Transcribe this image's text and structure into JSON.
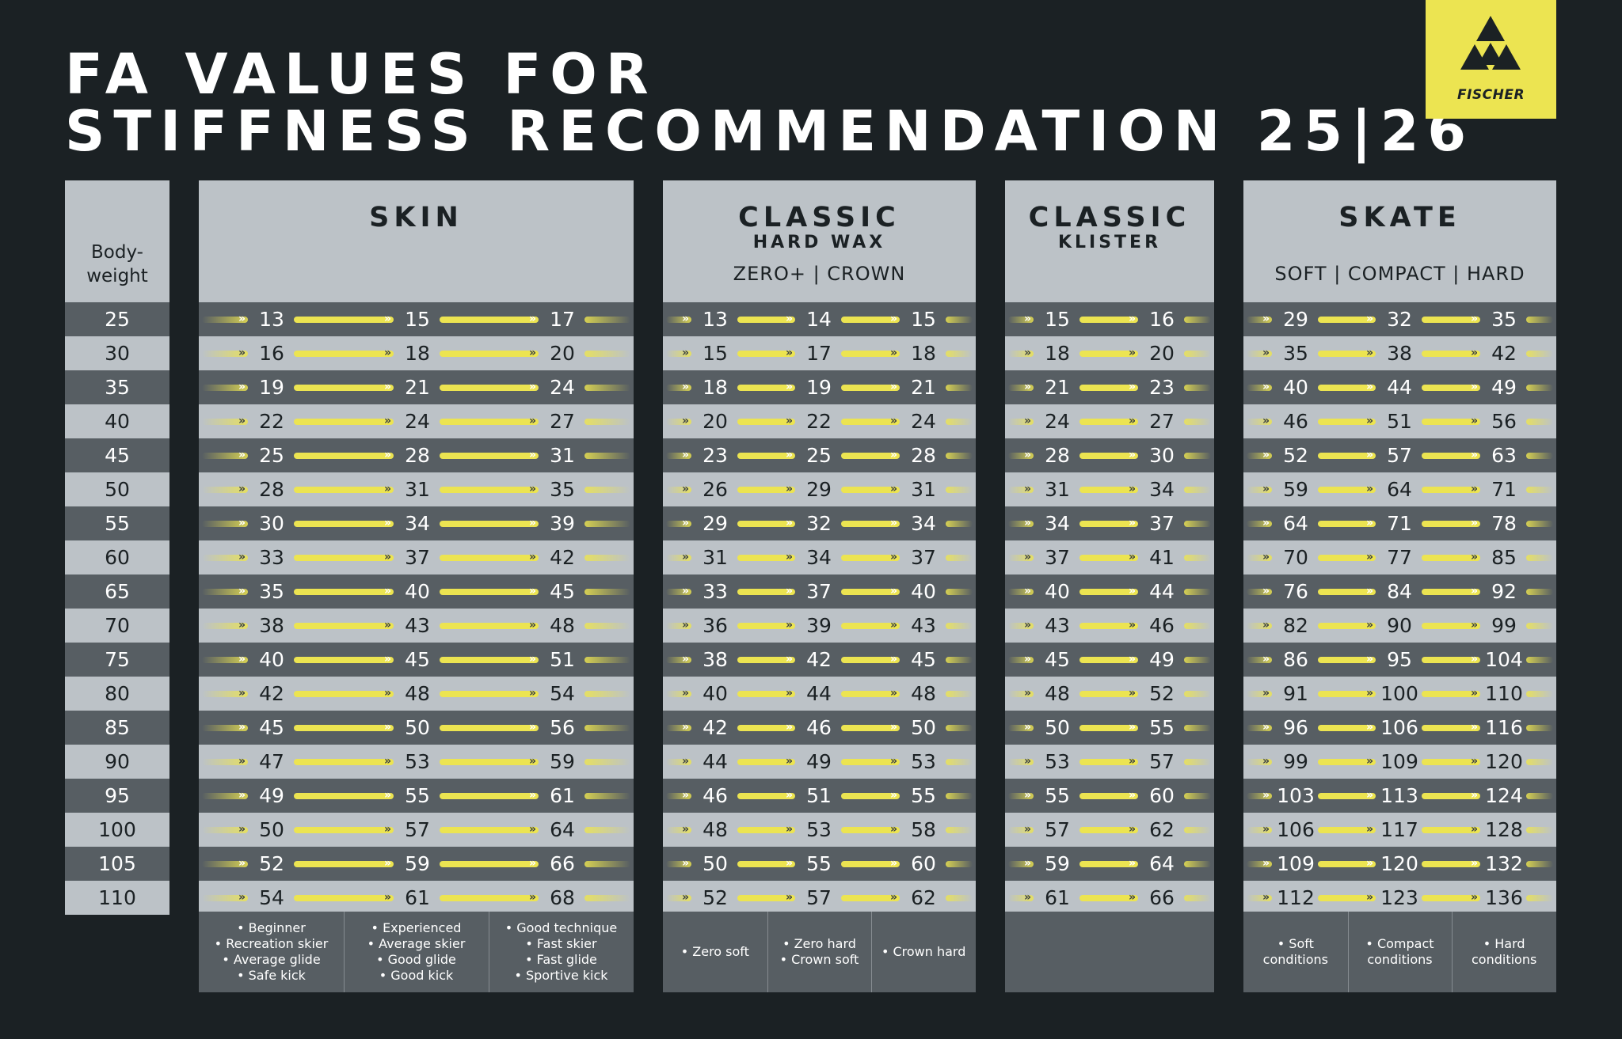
{
  "title_line1": "FA VALUES FOR",
  "title_line2": "STIFFNESS RECOMMENDATION 25|26",
  "logo": {
    "brand": "FISCHER",
    "icon": "triangle-trio-logo",
    "color": "#ece451"
  },
  "colors": {
    "background": "#1b2124",
    "row_dark": "#575e63",
    "row_light": "#bcc2c7",
    "accent": "#ece451"
  },
  "bodyweight": {
    "label_line1": "Body-",
    "label_line2": "weight",
    "values": [
      "25",
      "30",
      "35",
      "40",
      "45",
      "50",
      "55",
      "60",
      "65",
      "70",
      "75",
      "80",
      "85",
      "90",
      "95",
      "100",
      "105",
      "110"
    ]
  },
  "skin": {
    "title": "SKIN",
    "rows": [
      [
        "13",
        "15",
        "17"
      ],
      [
        "16",
        "18",
        "20"
      ],
      [
        "19",
        "21",
        "24"
      ],
      [
        "22",
        "24",
        "27"
      ],
      [
        "25",
        "28",
        "31"
      ],
      [
        "28",
        "31",
        "35"
      ],
      [
        "30",
        "34",
        "39"
      ],
      [
        "33",
        "37",
        "42"
      ],
      [
        "35",
        "40",
        "45"
      ],
      [
        "38",
        "43",
        "48"
      ],
      [
        "40",
        "45",
        "51"
      ],
      [
        "42",
        "48",
        "54"
      ],
      [
        "45",
        "50",
        "56"
      ],
      [
        "47",
        "53",
        "59"
      ],
      [
        "49",
        "55",
        "61"
      ],
      [
        "50",
        "57",
        "64"
      ],
      [
        "52",
        "59",
        "66"
      ],
      [
        "54",
        "61",
        "68"
      ]
    ],
    "footer": [
      "• Beginner\n• Recreation skier\n• Average glide\n• Safe kick",
      "• Experienced\n• Average skier\n• Good glide\n• Good kick",
      "• Good technique\n• Fast skier\n• Fast glide\n• Sportive kick"
    ]
  },
  "classic_hardwax": {
    "title": "CLASSIC",
    "subtitle": "HARD WAX",
    "options": "ZERO+  |  CROWN",
    "rows": [
      [
        "13",
        "14",
        "15"
      ],
      [
        "15",
        "17",
        "18"
      ],
      [
        "18",
        "19",
        "21"
      ],
      [
        "20",
        "22",
        "24"
      ],
      [
        "23",
        "25",
        "28"
      ],
      [
        "26",
        "29",
        "31"
      ],
      [
        "29",
        "32",
        "34"
      ],
      [
        "31",
        "34",
        "37"
      ],
      [
        "33",
        "37",
        "40"
      ],
      [
        "36",
        "39",
        "43"
      ],
      [
        "38",
        "42",
        "45"
      ],
      [
        "40",
        "44",
        "48"
      ],
      [
        "42",
        "46",
        "50"
      ],
      [
        "44",
        "49",
        "53"
      ],
      [
        "46",
        "51",
        "55"
      ],
      [
        "48",
        "53",
        "58"
      ],
      [
        "50",
        "55",
        "60"
      ],
      [
        "52",
        "57",
        "62"
      ]
    ],
    "footer": [
      "• Zero soft",
      "• Zero hard\n• Crown soft",
      "• Crown hard"
    ]
  },
  "classic_klister": {
    "title": "CLASSIC",
    "subtitle": "KLISTER",
    "rows": [
      [
        "15",
        "16"
      ],
      [
        "18",
        "20"
      ],
      [
        "21",
        "23"
      ],
      [
        "24",
        "27"
      ],
      [
        "28",
        "30"
      ],
      [
        "31",
        "34"
      ],
      [
        "34",
        "37"
      ],
      [
        "37",
        "41"
      ],
      [
        "40",
        "44"
      ],
      [
        "43",
        "46"
      ],
      [
        "45",
        "49"
      ],
      [
        "48",
        "52"
      ],
      [
        "50",
        "55"
      ],
      [
        "53",
        "57"
      ],
      [
        "55",
        "60"
      ],
      [
        "57",
        "62"
      ],
      [
        "59",
        "64"
      ],
      [
        "61",
        "66"
      ]
    ]
  },
  "skate": {
    "title": "SKATE",
    "options": "SOFT  |  COMPACT  |  HARD",
    "rows": [
      [
        "29",
        "32",
        "35"
      ],
      [
        "35",
        "38",
        "42"
      ],
      [
        "40",
        "44",
        "49"
      ],
      [
        "46",
        "51",
        "56"
      ],
      [
        "52",
        "57",
        "63"
      ],
      [
        "59",
        "64",
        "71"
      ],
      [
        "64",
        "71",
        "78"
      ],
      [
        "70",
        "77",
        "85"
      ],
      [
        "76",
        "84",
        "92"
      ],
      [
        "82",
        "90",
        "99"
      ],
      [
        "86",
        "95",
        "104"
      ],
      [
        "91",
        "100",
        "110"
      ],
      [
        "96",
        "106",
        "116"
      ],
      [
        "99",
        "109",
        "120"
      ],
      [
        "103",
        "113",
        "124"
      ],
      [
        "106",
        "117",
        "128"
      ],
      [
        "109",
        "120",
        "132"
      ],
      [
        "112",
        "123",
        "136"
      ]
    ],
    "footer": [
      "• Soft\nconditions",
      "• Compact\nconditions",
      "• Hard\nconditions"
    ]
  }
}
